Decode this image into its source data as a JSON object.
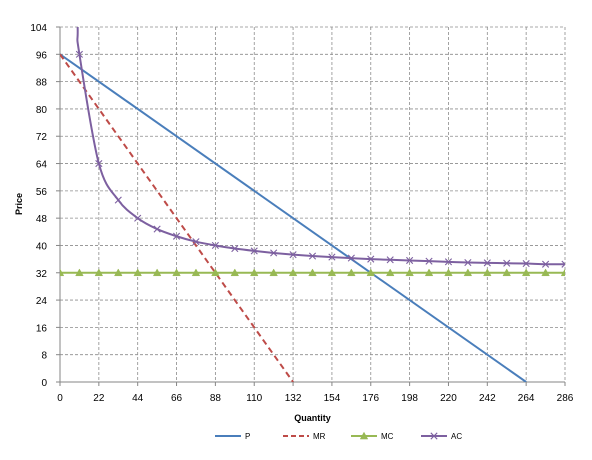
{
  "chart_data": {
    "type": "line",
    "title": "",
    "xlabel": "Quantity",
    "ylabel": "Price",
    "xlim": [
      0,
      286
    ],
    "ylim": [
      0,
      104
    ],
    "xticks": [
      0,
      22,
      44,
      66,
      88,
      110,
      132,
      154,
      176,
      198,
      220,
      242,
      264,
      286
    ],
    "yticks": [
      0,
      8,
      16,
      24,
      32,
      40,
      48,
      56,
      64,
      72,
      80,
      88,
      96,
      104
    ],
    "grid": true,
    "legend_position": "bottom",
    "series": [
      {
        "name": "P",
        "color": "#4a7ebb",
        "style": "solid",
        "marker": "none",
        "x": [
          0,
          264
        ],
        "y": [
          96,
          0
        ]
      },
      {
        "name": "MR",
        "color": "#be4b48",
        "style": "dashed",
        "marker": "none",
        "x": [
          0,
          132
        ],
        "y": [
          96,
          0
        ]
      },
      {
        "name": "MC",
        "color": "#98b954",
        "style": "solid",
        "marker": "triangle",
        "x": [
          0,
          11,
          22,
          33,
          44,
          55,
          66,
          77,
          88,
          99,
          110,
          121,
          132,
          143,
          154,
          165,
          176,
          187,
          198,
          209,
          220,
          231,
          242,
          253,
          264,
          275,
          286
        ],
        "y": [
          32,
          32,
          32,
          32,
          32,
          32,
          32,
          32,
          32,
          32,
          32,
          32,
          32,
          32,
          32,
          32,
          32,
          32,
          32,
          32,
          32,
          32,
          32,
          32,
          32,
          32,
          32
        ]
      },
      {
        "name": "AC",
        "color": "#7d60a0",
        "style": "solid",
        "marker": "x",
        "x": [
          11,
          22,
          33,
          44,
          55,
          66,
          77,
          88,
          99,
          110,
          121,
          132,
          143,
          154,
          165,
          176,
          187,
          198,
          209,
          220,
          231,
          242,
          253,
          264,
          275,
          286
        ],
        "y": [
          96,
          64,
          53.3,
          48,
          44.8,
          42.7,
          41.1,
          40,
          39.1,
          38.4,
          37.8,
          37.3,
          36.9,
          36.6,
          36.3,
          36,
          35.8,
          35.6,
          35.4,
          35.2,
          35,
          34.9,
          34.8,
          34.7,
          34.5,
          34.5
        ]
      }
    ]
  }
}
